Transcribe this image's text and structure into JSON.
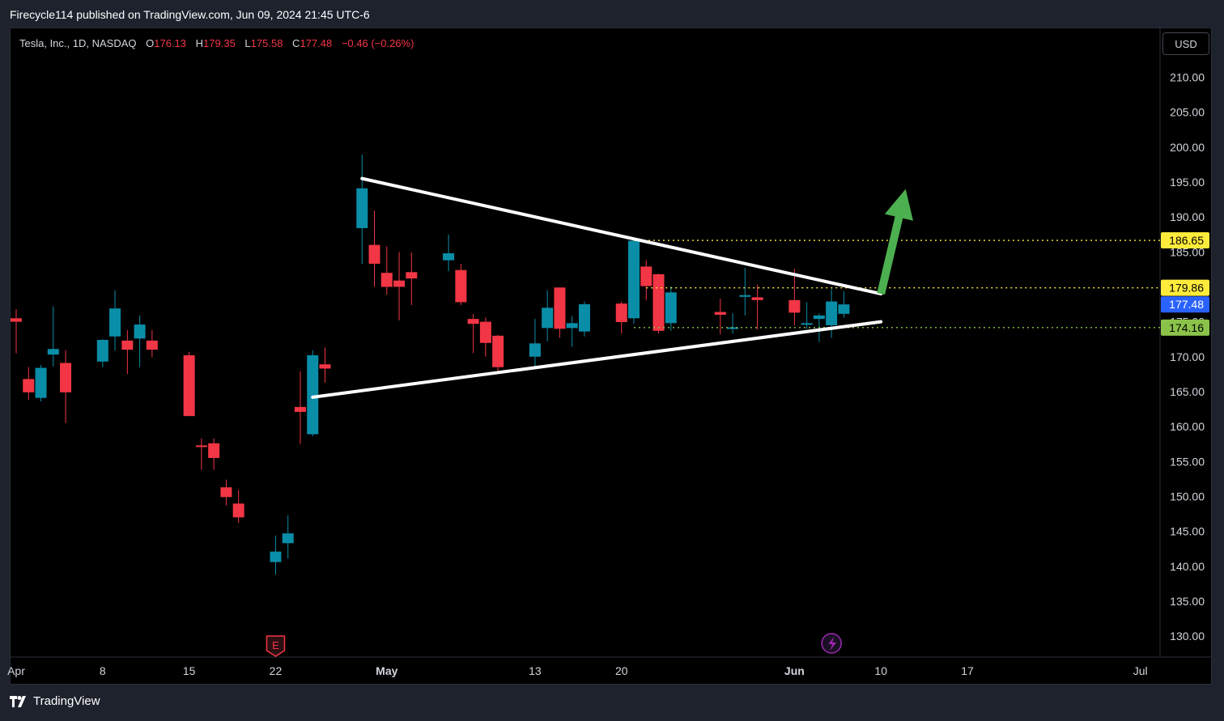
{
  "header": {
    "publish_line": "Firecycle114 published on TradingView.com, Jun 09, 2024 21:45 UTC-6"
  },
  "legend": {
    "symbol": "Tesla, Inc., 1D, NASDAQ",
    "open_key": "O",
    "open": "176.13",
    "high_key": "H",
    "high": "179.35",
    "low_key": "L",
    "low": "175.58",
    "close_key": "C",
    "close": "177.48",
    "change": "−0.46 (−0.26%)"
  },
  "currency": "USD",
  "footer": {
    "brand": "TradingView"
  },
  "markers": {
    "earnings_letter": "E"
  },
  "colors": {
    "up": "#089981",
    "up_body": "#0a8ea8",
    "down": "#f23645",
    "grid_text": "#d1d4dc",
    "line": "#ffffff",
    "arrow": "#4caf50",
    "level_yellow": "#ffeb3b",
    "level_green": "#8bc34a",
    "last_price": "#2962ff"
  },
  "chart_data": {
    "type": "candlestick",
    "title": "Tesla, Inc., 1D, NASDAQ",
    "y_range": [
      127,
      217
    ],
    "y_ticks": [
      "210.00",
      "205.00",
      "200.00",
      "195.00",
      "190.00",
      "185.00",
      "180.00",
      "175.00",
      "170.00",
      "165.00",
      "160.00",
      "155.00",
      "150.00",
      "145.00",
      "140.00",
      "135.00",
      "130.00"
    ],
    "x_ticks": [
      {
        "label": "Apr",
        "date": "2024-04-01"
      },
      {
        "label": "8",
        "date": "2024-04-08"
      },
      {
        "label": "15",
        "date": "2024-04-15"
      },
      {
        "label": "22",
        "date": "2024-04-22"
      },
      {
        "label": "May",
        "date": "2024-05-01"
      },
      {
        "label": "13",
        "date": "2024-05-13"
      },
      {
        "label": "20",
        "date": "2024-05-20"
      },
      {
        "label": "Jun",
        "date": "2024-06-03"
      },
      {
        "label": "10",
        "date": "2024-06-10"
      },
      {
        "label": "17",
        "date": "2024-06-17"
      },
      {
        "label": "Jul",
        "date": "2024-07-01"
      }
    ],
    "candles": [
      {
        "date": "2024-04-01",
        "o": 175.5,
        "h": 176.8,
        "l": 170.5,
        "c": 175.0
      },
      {
        "date": "2024-04-02",
        "o": 166.8,
        "h": 168.5,
        "l": 163.8,
        "c": 164.9
      },
      {
        "date": "2024-04-03",
        "o": 164.1,
        "h": 168.8,
        "l": 163.6,
        "c": 168.4
      },
      {
        "date": "2024-04-04",
        "o": 170.3,
        "h": 177.2,
        "l": 168.6,
        "c": 171.1
      },
      {
        "date": "2024-04-05",
        "o": 169.1,
        "h": 170.9,
        "l": 160.5,
        "c": 164.9
      },
      {
        "date": "2024-04-08",
        "o": 169.3,
        "h": 172.5,
        "l": 168.5,
        "c": 172.4
      },
      {
        "date": "2024-04-09",
        "o": 172.9,
        "h": 179.5,
        "l": 170.9,
        "c": 176.9
      },
      {
        "date": "2024-04-10",
        "o": 172.3,
        "h": 173.8,
        "l": 167.5,
        "c": 171.0
      },
      {
        "date": "2024-04-11",
        "o": 172.6,
        "h": 175.9,
        "l": 168.5,
        "c": 174.6
      },
      {
        "date": "2024-04-12",
        "o": 172.3,
        "h": 173.8,
        "l": 169.9,
        "c": 171.0
      },
      {
        "date": "2024-04-15",
        "o": 170.2,
        "h": 170.7,
        "l": 161.5,
        "c": 161.5
      },
      {
        "date": "2024-04-16",
        "o": 157.3,
        "h": 158.3,
        "l": 153.8,
        "c": 157.1
      },
      {
        "date": "2024-04-17",
        "o": 157.6,
        "h": 158.3,
        "l": 153.8,
        "c": 155.5
      },
      {
        "date": "2024-04-18",
        "o": 151.3,
        "h": 152.4,
        "l": 148.7,
        "c": 149.9
      },
      {
        "date": "2024-04-19",
        "o": 148.97,
        "h": 150.9,
        "l": 146.2,
        "c": 147.0
      },
      {
        "date": "2024-04-22",
        "o": 140.6,
        "h": 144.4,
        "l": 138.8,
        "c": 142.1
      },
      {
        "date": "2024-04-23",
        "o": 143.3,
        "h": 147.3,
        "l": 141.1,
        "c": 144.7
      },
      {
        "date": "2024-04-24",
        "o": 162.8,
        "h": 167.9,
        "l": 157.5,
        "c": 162.1
      },
      {
        "date": "2024-04-25",
        "o": 158.9,
        "h": 170.9,
        "l": 158.6,
        "c": 170.2
      },
      {
        "date": "2024-04-26",
        "o": 168.9,
        "h": 171.3,
        "l": 166.3,
        "c": 168.3
      },
      {
        "date": "2024-04-29",
        "o": 188.4,
        "h": 198.9,
        "l": 183.3,
        "c": 194.1
      },
      {
        "date": "2024-04-30",
        "o": 186.0,
        "h": 190.9,
        "l": 180.0,
        "c": 183.3
      },
      {
        "date": "2024-05-01",
        "o": 182.0,
        "h": 185.8,
        "l": 178.9,
        "c": 179.99
      },
      {
        "date": "2024-05-02",
        "o": 180.9,
        "h": 185.0,
        "l": 175.2,
        "c": 180.0
      },
      {
        "date": "2024-05-03",
        "o": 182.1,
        "h": 184.9,
        "l": 177.4,
        "c": 181.2
      },
      {
        "date": "2024-05-06",
        "o": 183.8,
        "h": 187.5,
        "l": 182.2,
        "c": 184.8
      },
      {
        "date": "2024-05-07",
        "o": 182.4,
        "h": 183.3,
        "l": 177.4,
        "c": 177.8
      },
      {
        "date": "2024-05-08",
        "o": 175.4,
        "h": 176.1,
        "l": 170.5,
        "c": 174.7
      },
      {
        "date": "2024-05-09",
        "o": 175.0,
        "h": 175.6,
        "l": 170.0,
        "c": 171.97
      },
      {
        "date": "2024-05-10",
        "o": 173.0,
        "h": 173.1,
        "l": 167.8,
        "c": 168.5
      },
      {
        "date": "2024-05-13",
        "o": 170.0,
        "h": 175.4,
        "l": 168.2,
        "c": 171.9
      },
      {
        "date": "2024-05-14",
        "o": 174.1,
        "h": 179.5,
        "l": 172.2,
        "c": 177.0
      },
      {
        "date": "2024-05-15",
        "o": 179.9,
        "h": 179.9,
        "l": 172.7,
        "c": 173.99
      },
      {
        "date": "2024-05-16",
        "o": 174.1,
        "h": 175.8,
        "l": 171.4,
        "c": 174.8
      },
      {
        "date": "2024-05-17",
        "o": 173.6,
        "h": 177.9,
        "l": 172.9,
        "c": 177.5
      },
      {
        "date": "2024-05-20",
        "o": 177.6,
        "h": 177.9,
        "l": 173.3,
        "c": 174.95
      },
      {
        "date": "2024-05-21",
        "o": 175.5,
        "h": 186.9,
        "l": 174.7,
        "c": 186.6
      },
      {
        "date": "2024-05-22",
        "o": 182.9,
        "h": 183.8,
        "l": 178.1,
        "c": 180.1
      },
      {
        "date": "2024-05-23",
        "o": 181.8,
        "h": 181.9,
        "l": 173.3,
        "c": 173.7
      },
      {
        "date": "2024-05-24",
        "o": 174.8,
        "h": 180.1,
        "l": 173.7,
        "c": 179.2
      },
      {
        "date": "2024-05-28",
        "o": 176.4,
        "h": 178.3,
        "l": 173.2,
        "c": 176.0
      },
      {
        "date": "2024-05-29",
        "o": 174.2,
        "h": 176.2,
        "l": 173.3,
        "c": 174.2
      },
      {
        "date": "2024-05-30",
        "o": 178.6,
        "h": 182.7,
        "l": 175.9,
        "c": 178.8
      },
      {
        "date": "2024-05-31",
        "o": 178.5,
        "h": 180.3,
        "l": 173.9,
        "c": 178.1
      },
      {
        "date": "2024-06-03",
        "o": 178.1,
        "h": 182.6,
        "l": 174.5,
        "c": 176.3
      },
      {
        "date": "2024-06-04",
        "o": 174.8,
        "h": 177.8,
        "l": 174.0,
        "c": 174.8
      },
      {
        "date": "2024-06-05",
        "o": 175.4,
        "h": 176.2,
        "l": 172.1,
        "c": 175.9
      },
      {
        "date": "2024-06-06",
        "o": 174.5,
        "h": 179.7,
        "l": 172.7,
        "c": 177.9
      },
      {
        "date": "2024-06-07",
        "o": 176.13,
        "h": 179.35,
        "l": 175.58,
        "c": 177.48
      }
    ],
    "drawings": [
      {
        "type": "trendline",
        "from": {
          "date": "2024-04-29",
          "price": 195.5
        },
        "to": {
          "date": "2024-06-10",
          "price": 179.0
        }
      },
      {
        "type": "trendline",
        "from": {
          "date": "2024-04-25",
          "price": 164.2
        },
        "to": {
          "date": "2024-06-10",
          "price": 175.0
        }
      },
      {
        "type": "arrow",
        "from": {
          "date": "2024-06-10",
          "price": 179.0
        },
        "to": {
          "date": "2024-06-12",
          "price": 194.0
        }
      }
    ],
    "levels": [
      {
        "price": 186.65,
        "label": "186.65",
        "color": "#ffeb3b",
        "from": "2024-05-21"
      },
      {
        "price": 179.86,
        "label": "179.86",
        "color": "#ffeb3b",
        "from": "2024-05-22"
      },
      {
        "price": 174.16,
        "label": "174.16",
        "color": "#8bc34a",
        "from": "2024-05-21"
      }
    ],
    "last_price": {
      "price": 177.48,
      "label": "177.48"
    },
    "earnings_marker": {
      "date": "2024-04-22",
      "label": "E"
    },
    "event_marker": {
      "date": "2024-06-06",
      "icon": "lightning-icon"
    }
  }
}
